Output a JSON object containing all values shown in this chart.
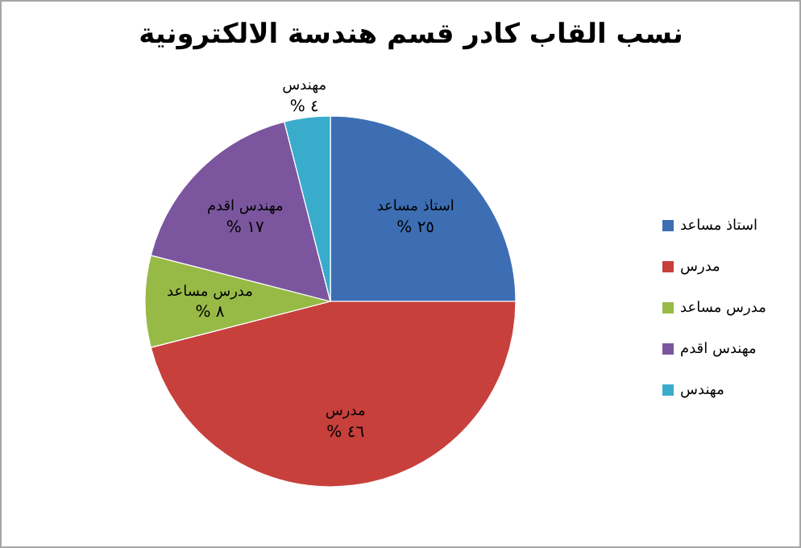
{
  "chart_data": {
    "type": "pie",
    "title": "نسب القاب كادر قسم هندسة الالكترونية",
    "categories": [
      "استاذ مساعد",
      "مدرس",
      "مدرس مساعد",
      "مهندس اقدم",
      "مهندس"
    ],
    "values": [
      25,
      46,
      8,
      17,
      4
    ],
    "colors": [
      "#3d6eb4",
      "#c8403c",
      "#97ba47",
      "#7b569e",
      "#3aaccb"
    ],
    "value_labels": [
      "٢٥ %",
      "٤٦ %",
      "٨ %",
      "١٧ %",
      "٤ %"
    ],
    "legend": "right"
  }
}
